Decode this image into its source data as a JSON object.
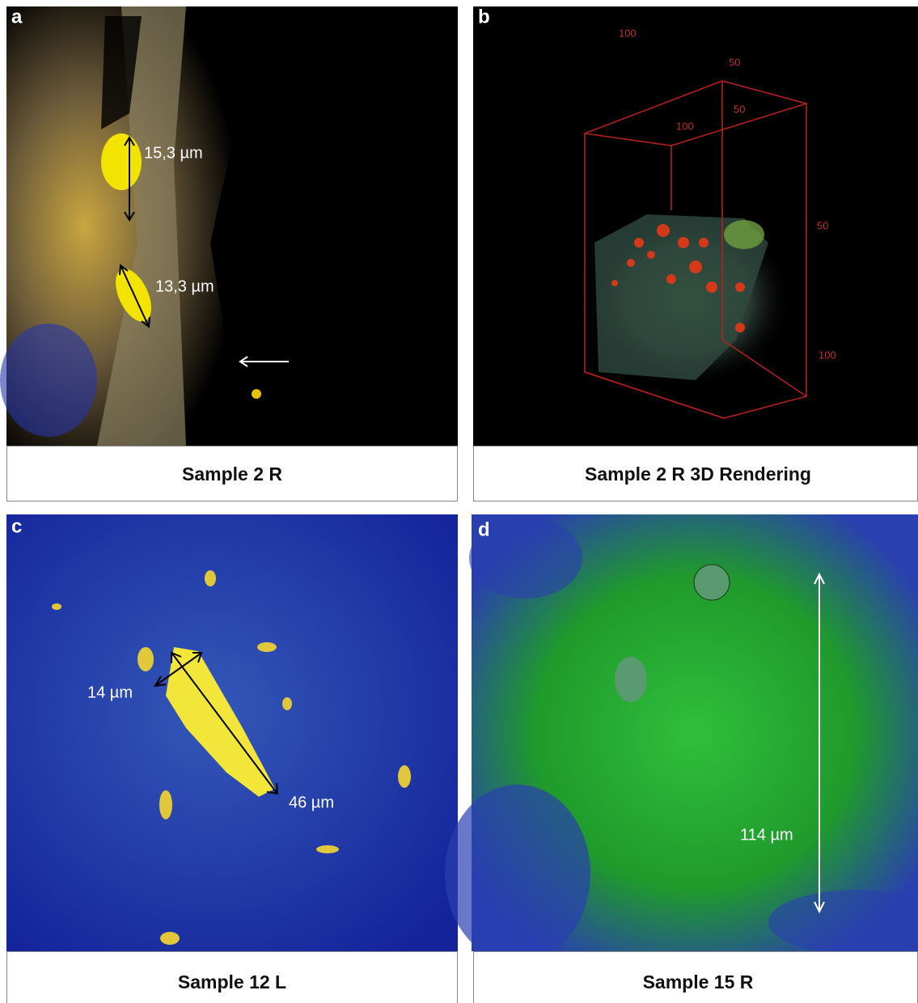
{
  "panels": [
    {
      "label": "a",
      "caption": "Sample 2 R",
      "annotations": [
        "15,3 µm",
        "13,3 µm"
      ]
    },
    {
      "label": "b",
      "caption": "Sample 2 R 3D Rendering",
      "axis_labels": [
        "100",
        "50",
        "50",
        "100",
        "50",
        "100"
      ]
    },
    {
      "label": "c",
      "caption": "Sample 12 L",
      "annotations": [
        "14 µm",
        "46 µm"
      ]
    },
    {
      "label": "d",
      "caption": "Sample 15 R",
      "annotations": [
        "114 µm"
      ]
    }
  ]
}
